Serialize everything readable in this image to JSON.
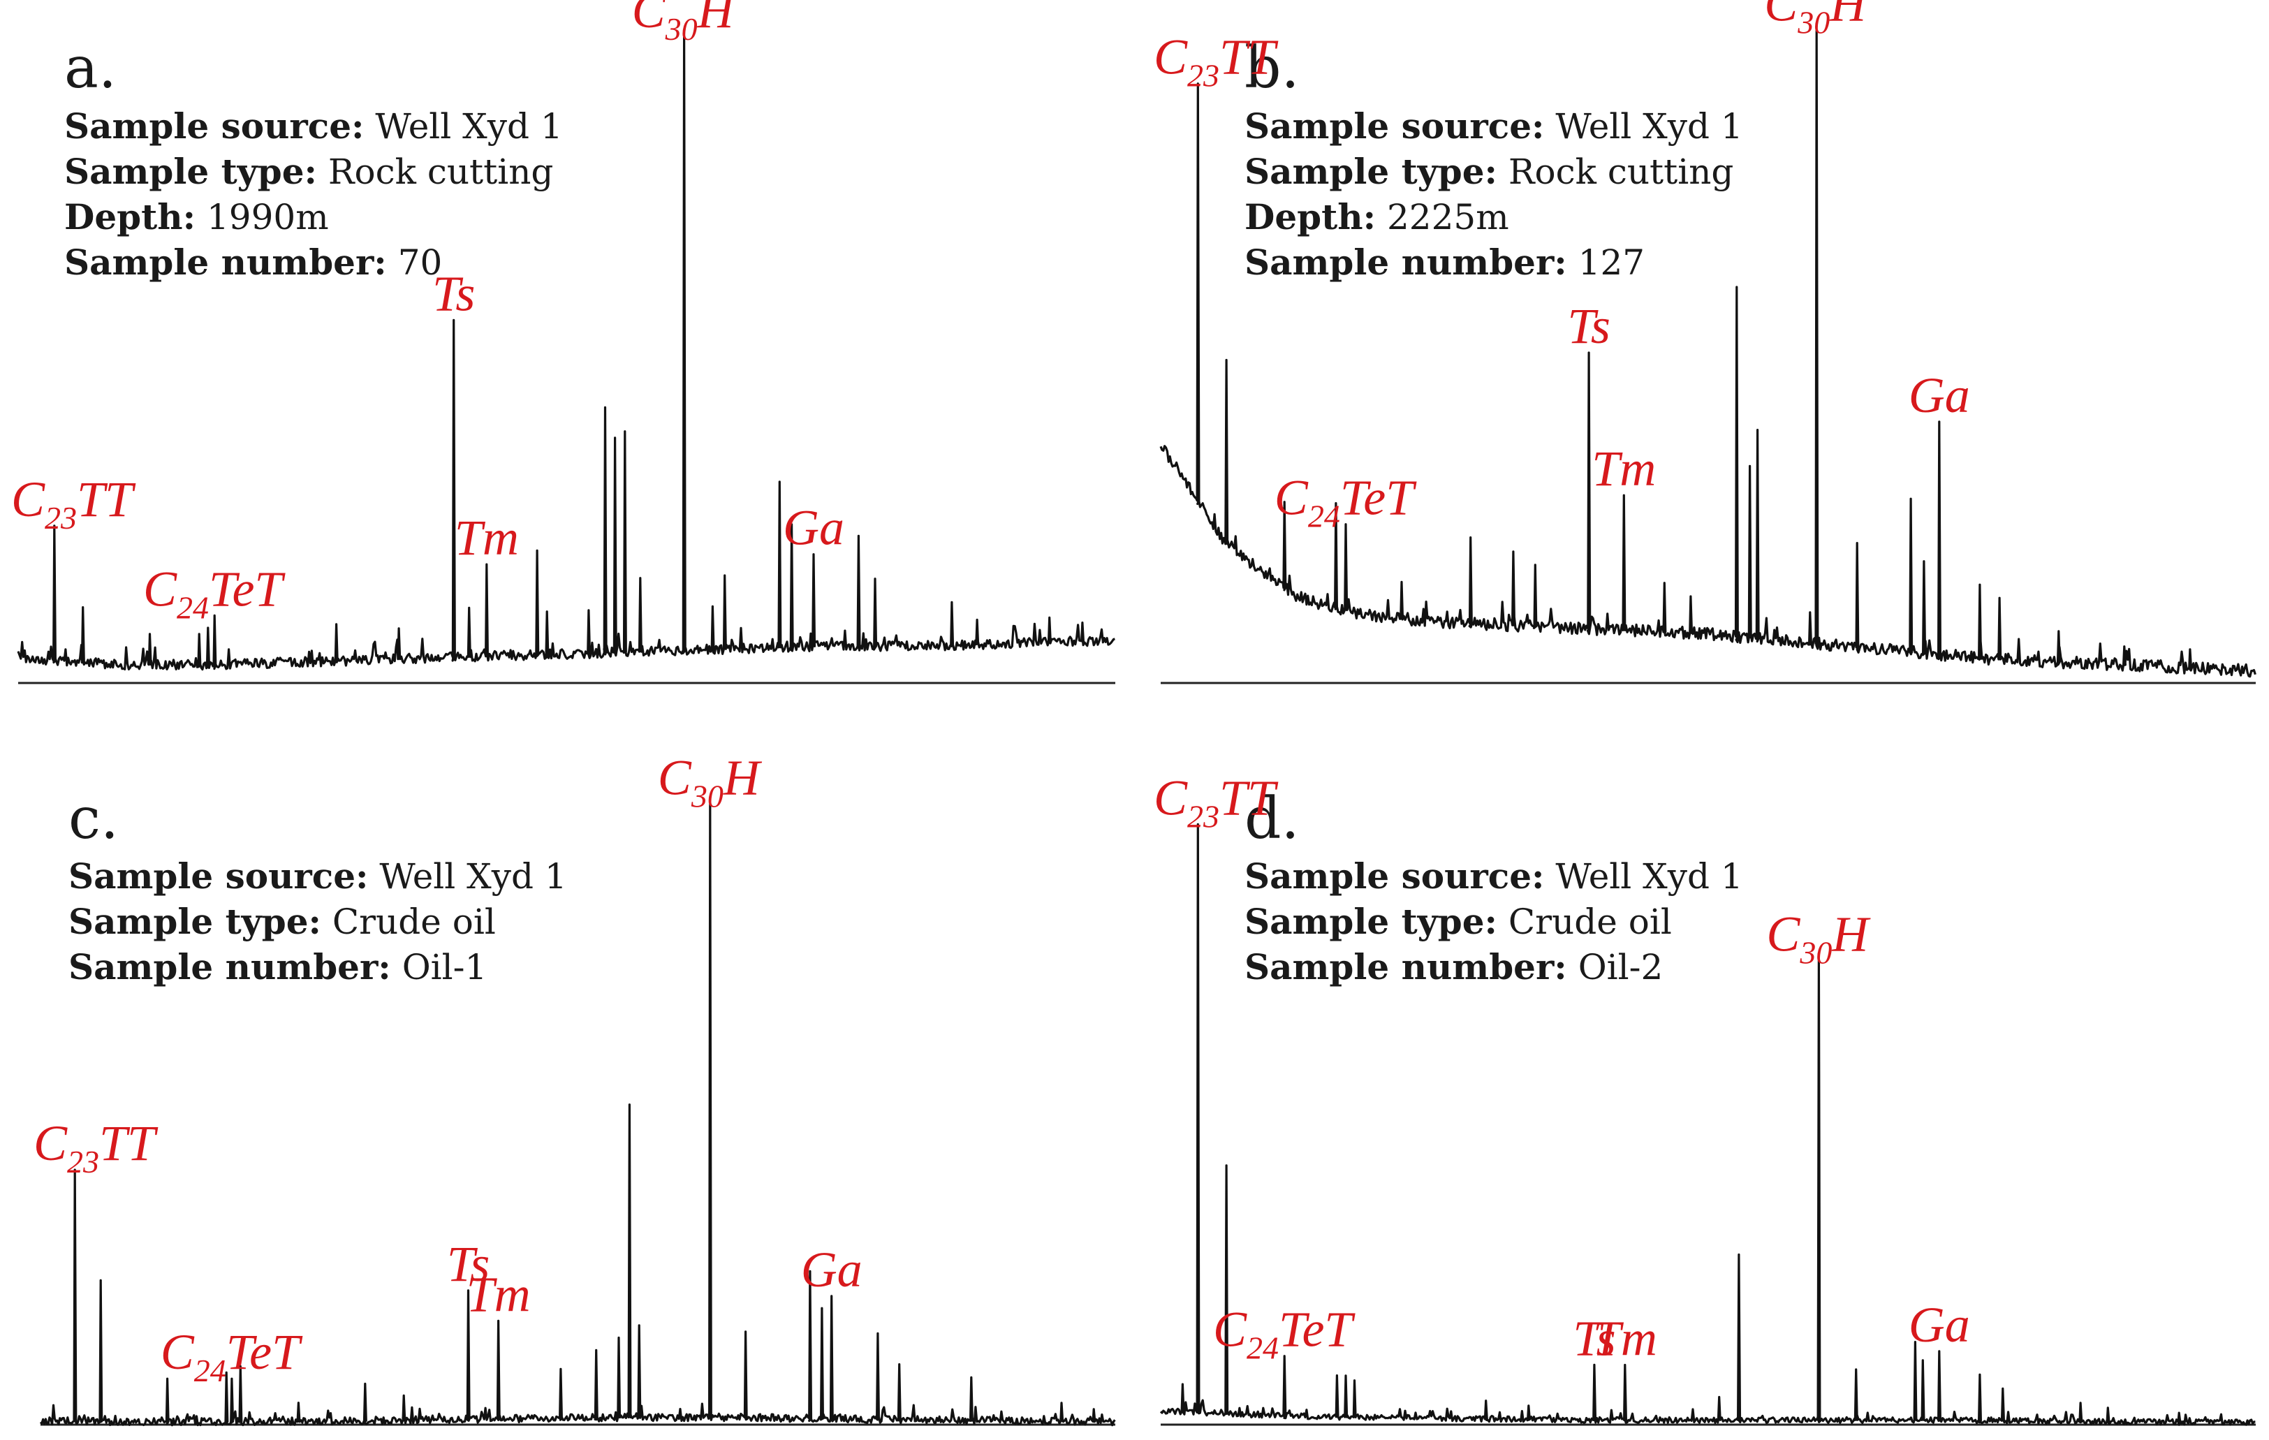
{
  "chart_data": [
    {
      "type": "line",
      "panel": "a.",
      "info": [
        {
          "key": "Sample source:",
          "value": "Well Xyd 1"
        },
        {
          "key": "Sample type:",
          "value": "Rock cutting"
        },
        {
          "key": "Depth:",
          "value": "1990m"
        },
        {
          "key": "Sample  number:",
          "value": "70"
        }
      ],
      "xlim": [
        0,
        100
      ],
      "ylim": [
        0,
        100
      ],
      "baseline": [
        4,
        3,
        3,
        3.5,
        4,
        4.5,
        5,
        5.5,
        6,
        6,
        6.5,
        7
      ],
      "noise": 0.8,
      "peaks": [
        {
          "x": 3.3,
          "y": 22,
          "label": "C",
          "sub": "23",
          "suffix": "TT"
        },
        {
          "x": 5.9,
          "y": 9
        },
        {
          "x": 12.0,
          "y": 5
        },
        {
          "x": 16.5,
          "y": 5
        },
        {
          "x": 17.3,
          "y": 6
        },
        {
          "x": 17.9,
          "y": 8,
          "label": "C",
          "sub": "24",
          "suffix": "TeT"
        },
        {
          "x": 29.0,
          "y": 6
        },
        {
          "x": 34.7,
          "y": 5
        },
        {
          "x": 39.7,
          "y": 55,
          "label": "Ts"
        },
        {
          "x": 41.1,
          "y": 8
        },
        {
          "x": 42.7,
          "y": 15,
          "label": "Tm"
        },
        {
          "x": 47.3,
          "y": 17
        },
        {
          "x": 48.2,
          "y": 7
        },
        {
          "x": 52.0,
          "y": 7
        },
        {
          "x": 53.5,
          "y": 40
        },
        {
          "x": 54.4,
          "y": 35
        },
        {
          "x": 55.3,
          "y": 36
        },
        {
          "x": 56.7,
          "y": 12
        },
        {
          "x": 60.7,
          "y": 100,
          "label": "C",
          "sub": "30",
          "suffix": "H"
        },
        {
          "x": 63.3,
          "y": 7
        },
        {
          "x": 64.4,
          "y": 12
        },
        {
          "x": 69.4,
          "y": 27
        },
        {
          "x": 70.5,
          "y": 20
        },
        {
          "x": 72.5,
          "y": 15,
          "label": "Ga"
        },
        {
          "x": 76.6,
          "y": 18
        },
        {
          "x": 78.1,
          "y": 11
        },
        {
          "x": 85.1,
          "y": 7
        },
        {
          "x": 87.4,
          "y": 4
        },
        {
          "x": 94.0,
          "y": 4
        },
        {
          "x": 97.0,
          "y": 3
        }
      ]
    },
    {
      "type": "line",
      "panel": "b.",
      "info": [
        {
          "key": "Sample source:",
          "value": "Well Xyd 1"
        },
        {
          "key": "Sample type:",
          "value": "Rock cutting"
        },
        {
          "key": "Depth:",
          "value": "2225m"
        },
        {
          "key": "Sample  number:",
          "value": "127"
        }
      ],
      "xlim": [
        0,
        100
      ],
      "ylim": [
        0,
        100
      ],
      "baseline": [
        39,
        22,
        14,
        11,
        10,
        9.5,
        9,
        8.5,
        8,
        7,
        6,
        5,
        4,
        3.5,
        3,
        2.5,
        2
      ],
      "noise": 1.0,
      "peaks": [
        {
          "x": 3.4,
          "y": 68,
          "label": "C",
          "sub": "23",
          "suffix": "TT"
        },
        {
          "x": 6.0,
          "y": 30
        },
        {
          "x": 11.3,
          "y": 14
        },
        {
          "x": 16.0,
          "y": 17
        },
        {
          "x": 16.9,
          "y": 14,
          "label": "C",
          "sub": "24",
          "suffix": "TeT"
        },
        {
          "x": 22.0,
          "y": 6
        },
        {
          "x": 28.3,
          "y": 14
        },
        {
          "x": 32.2,
          "y": 12
        },
        {
          "x": 34.2,
          "y": 10
        },
        {
          "x": 39.1,
          "y": 45,
          "label": "Ts"
        },
        {
          "x": 42.3,
          "y": 22,
          "label": "Tm"
        },
        {
          "x": 46.0,
          "y": 8
        },
        {
          "x": 48.4,
          "y": 6
        },
        {
          "x": 52.6,
          "y": 57
        },
        {
          "x": 53.8,
          "y": 28
        },
        {
          "x": 54.5,
          "y": 34
        },
        {
          "x": 59.3,
          "y": 5
        },
        {
          "x": 59.9,
          "y": 100,
          "label": "C",
          "sub": "30",
          "suffix": "H"
        },
        {
          "x": 63.6,
          "y": 17
        },
        {
          "x": 68.5,
          "y": 25
        },
        {
          "x": 69.7,
          "y": 15
        },
        {
          "x": 71.1,
          "y": 38,
          "label": "Ga"
        },
        {
          "x": 74.8,
          "y": 12
        },
        {
          "x": 76.6,
          "y": 10
        },
        {
          "x": 82.0,
          "y": 5
        },
        {
          "x": 88.0,
          "y": 3
        },
        {
          "x": 94.0,
          "y": 3
        }
      ]
    },
    {
      "type": "line",
      "panel": "c.",
      "info": [
        {
          "key": "Sample source:",
          "value": "Well Xyd 1"
        },
        {
          "key": "Sample type:",
          "value": "Crude oil"
        },
        {
          "key": "Sample  number:",
          "value": "Oil-1"
        }
      ],
      "xlim": [
        0,
        100
      ],
      "ylim": [
        0,
        100
      ],
      "baseline": [
        0.6,
        0.5,
        0.5,
        0.6,
        0.8,
        1,
        1.2,
        1.2,
        1,
        0.8,
        0.6,
        0.5
      ],
      "noise": 0.6,
      "peaks": [
        {
          "x": 3.2,
          "y": 41,
          "label": "C",
          "sub": "23",
          "suffix": "TT"
        },
        {
          "x": 5.6,
          "y": 23
        },
        {
          "x": 11.8,
          "y": 7
        },
        {
          "x": 17.3,
          "y": 8
        },
        {
          "x": 17.8,
          "y": 7,
          "label": "C",
          "sub": "24",
          "suffix": "TeT"
        },
        {
          "x": 18.6,
          "y": 9
        },
        {
          "x": 24.0,
          "y": 3
        },
        {
          "x": 30.2,
          "y": 6
        },
        {
          "x": 33.8,
          "y": 4
        },
        {
          "x": 39.8,
          "y": 21,
          "label": "Ts"
        },
        {
          "x": 42.6,
          "y": 16,
          "label": "Tm"
        },
        {
          "x": 48.4,
          "y": 8
        },
        {
          "x": 51.7,
          "y": 11
        },
        {
          "x": 53.8,
          "y": 13
        },
        {
          "x": 54.8,
          "y": 51
        },
        {
          "x": 55.7,
          "y": 15
        },
        {
          "x": 62.3,
          "y": 100,
          "label": "C",
          "sub": "30",
          "suffix": "H"
        },
        {
          "x": 65.6,
          "y": 14
        },
        {
          "x": 71.6,
          "y": 24
        },
        {
          "x": 72.7,
          "y": 18
        },
        {
          "x": 73.6,
          "y": 20,
          "label": "Ga"
        },
        {
          "x": 77.9,
          "y": 14
        },
        {
          "x": 79.9,
          "y": 9
        },
        {
          "x": 86.6,
          "y": 7
        },
        {
          "x": 95.0,
          "y": 3
        },
        {
          "x": 98.0,
          "y": 2
        }
      ]
    },
    {
      "type": "line",
      "panel": "d.",
      "info": [
        {
          "key": "Sample source:",
          "value": "Well Xyd 1"
        },
        {
          "key": "Sample type:",
          "value": "Crude oil"
        },
        {
          "key": "Sample  number:",
          "value": "Oil-2"
        }
      ],
      "xlim": [
        0,
        100
      ],
      "ylim": [
        0,
        100
      ],
      "baseline": [
        3,
        2,
        1.5,
        1.2,
        1,
        1,
        1,
        1,
        0.8,
        0.6,
        0.5
      ],
      "noise": 0.6,
      "peaks": [
        {
          "x": 2.0,
          "y": 6
        },
        {
          "x": 3.4,
          "y": 128,
          "label": "C",
          "sub": "23",
          "suffix": "TT"
        },
        {
          "x": 6.0,
          "y": 54
        },
        {
          "x": 11.3,
          "y": 13,
          "label": "C",
          "sub": "24",
          "suffix": "TeT"
        },
        {
          "x": 16.1,
          "y": 9
        },
        {
          "x": 16.9,
          "y": 9
        },
        {
          "x": 17.7,
          "y": 8
        },
        {
          "x": 29.7,
          "y": 4
        },
        {
          "x": 33.6,
          "y": 3
        },
        {
          "x": 39.6,
          "y": 12,
          "label": "Ts"
        },
        {
          "x": 42.4,
          "y": 12,
          "label": "Tm"
        },
        {
          "x": 51.0,
          "y": 5
        },
        {
          "x": 52.8,
          "y": 36
        },
        {
          "x": 60.1,
          "y": 100,
          "label": "C",
          "sub": "30",
          "suffix": "H"
        },
        {
          "x": 63.5,
          "y": 11
        },
        {
          "x": 68.9,
          "y": 17
        },
        {
          "x": 69.6,
          "y": 13
        },
        {
          "x": 71.1,
          "y": 15,
          "label": "Ga"
        },
        {
          "x": 74.8,
          "y": 10
        },
        {
          "x": 76.9,
          "y": 7
        },
        {
          "x": 84.0,
          "y": 4
        },
        {
          "x": 86.5,
          "y": 3
        },
        {
          "x": 93.0,
          "y": 2
        }
      ]
    }
  ]
}
